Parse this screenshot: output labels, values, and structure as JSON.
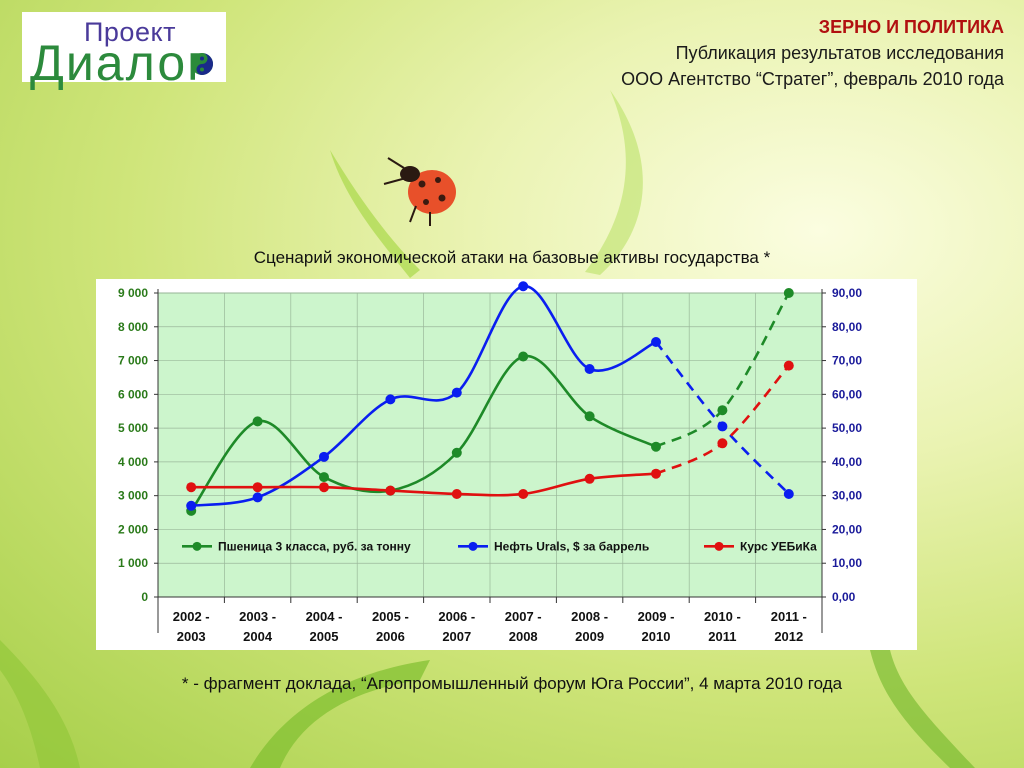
{
  "logo": {
    "top_text": "Проект",
    "bottom_text": "Диалог"
  },
  "header": {
    "title": "ЗЕРНО И ПОЛИТИКА",
    "line2": "Публикация результатов исследования",
    "line3": "ООО Агентство “Стратег”, февраль 2010 года"
  },
  "chart_title": "Сценарий экономической атаки на базовые активы государства *",
  "footnote": "* - фрагмент доклада, “Агропромышленный форум Юга России”, 4 марта 2010 года",
  "colors": {
    "plot_bg": "#ccf5cc",
    "green": "#1e8a28",
    "blue": "#0a1ef0",
    "red": "#e01010",
    "left_axis": "#2a7a1a",
    "right_axis": "#1a1a9a"
  },
  "chart_data": {
    "type": "line",
    "categories": [
      [
        "2002 -",
        "2003"
      ],
      [
        "2003 -",
        "2004"
      ],
      [
        "2004 -",
        "2005"
      ],
      [
        "2005 -",
        "2006"
      ],
      [
        "2006 -",
        "2007"
      ],
      [
        "2007 -",
        "2008"
      ],
      [
        "2008 -",
        "2009"
      ],
      [
        "2009 -",
        "2010"
      ],
      [
        "2010 -",
        "2011"
      ],
      [
        "2011 -",
        "2012"
      ]
    ],
    "y_left": {
      "ylim": [
        0,
        9000
      ],
      "ticks": [
        "0",
        "1 000",
        "2 000",
        "3 000",
        "4 000",
        "5 000",
        "6 000",
        "7 000",
        "8 000",
        "9 000"
      ]
    },
    "y_right": {
      "ylim": [
        0,
        90
      ],
      "ticks": [
        "0,00",
        "10,00",
        "20,00",
        "30,00",
        "40,00",
        "50,00",
        "60,00",
        "70,00",
        "80,00",
        "90,00"
      ]
    },
    "series": [
      {
        "name": "Пшеница 3 класса, руб. за тонну",
        "axis": "left",
        "color_key": "green",
        "values": [
          2550,
          5200,
          3550,
          3150,
          4270,
          7120,
          5350,
          4450,
          5530,
          9000
        ],
        "dashed_from_index": 7
      },
      {
        "name": "Нефть Urals, $ за баррель",
        "axis": "right",
        "color_key": "blue",
        "values": [
          27,
          29.5,
          41.5,
          58.5,
          60.5,
          92,
          67.5,
          75.5,
          50.5,
          30.5
        ],
        "dashed_from_index": 7
      },
      {
        "name": "Курс УЕБиКа",
        "axis": "right",
        "color_key": "red",
        "values": [
          32.5,
          32.5,
          32.5,
          31.5,
          30.5,
          30.5,
          35,
          36.5,
          45.5,
          68.5
        ],
        "dashed_from_index": 7
      }
    ],
    "legend": "inside-bottom",
    "grid": true
  }
}
